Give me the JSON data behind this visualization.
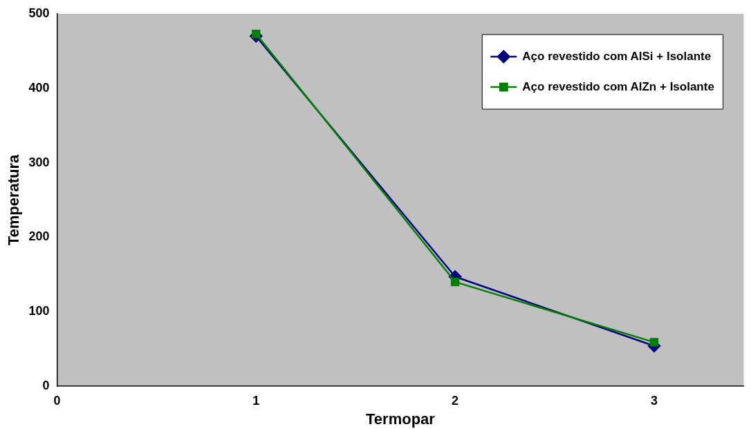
{
  "chart_data": {
    "type": "line",
    "xlabel": "Termopar",
    "ylabel": "Temperatura",
    "x": [
      1,
      2,
      3
    ],
    "xlim": [
      0,
      3.45
    ],
    "xticks": [
      0,
      1,
      2,
      3
    ],
    "ylim": [
      0,
      500
    ],
    "yticks": [
      0,
      100,
      200,
      300,
      400,
      500
    ],
    "grid": false,
    "legend": "top right",
    "series": [
      {
        "name": "Aço revestido com AlSi + Isolante",
        "color": "#000080",
        "marker": "diamond",
        "values": [
          470,
          147,
          54
        ]
      },
      {
        "name": "Aço revestido com AlZn + Isolante",
        "color": "#008000",
        "marker": "square",
        "values": [
          473,
          140,
          59
        ]
      }
    ]
  }
}
